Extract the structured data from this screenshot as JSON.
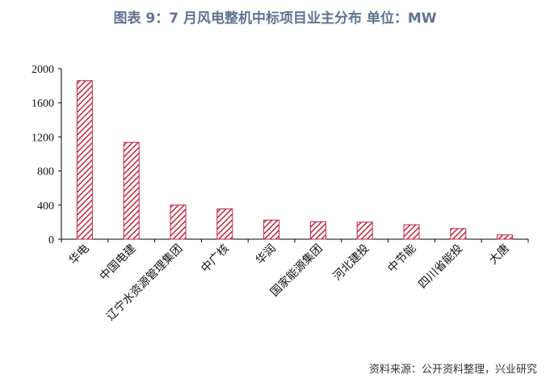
{
  "header": {
    "title": "图表 9：7 月风电整机中标项目业主分布 单位：MW"
  },
  "footer": {
    "source": "资料来源：公开资料整理，兴业研究"
  },
  "chart_data": {
    "type": "bar",
    "title": "图表 9：7 月风电整机中标项目业主分布 单位：MW",
    "categories": [
      "华电",
      "中国电建",
      "辽宁水资源管理集团",
      "中广核",
      "华润",
      "国家能源集团",
      "河北建投",
      "中节能",
      "四川省能投",
      "大唐"
    ],
    "values": [
      1860,
      1135,
      400,
      355,
      225,
      205,
      200,
      170,
      125,
      50
    ],
    "ylim": [
      0,
      2000
    ],
    "yticks": [
      0,
      400,
      800,
      1200,
      1600,
      2000
    ],
    "grid": false,
    "legend": "none",
    "bar_fill": "hatched",
    "bar_color": "#c0243c",
    "title_color": "#5f7491"
  }
}
